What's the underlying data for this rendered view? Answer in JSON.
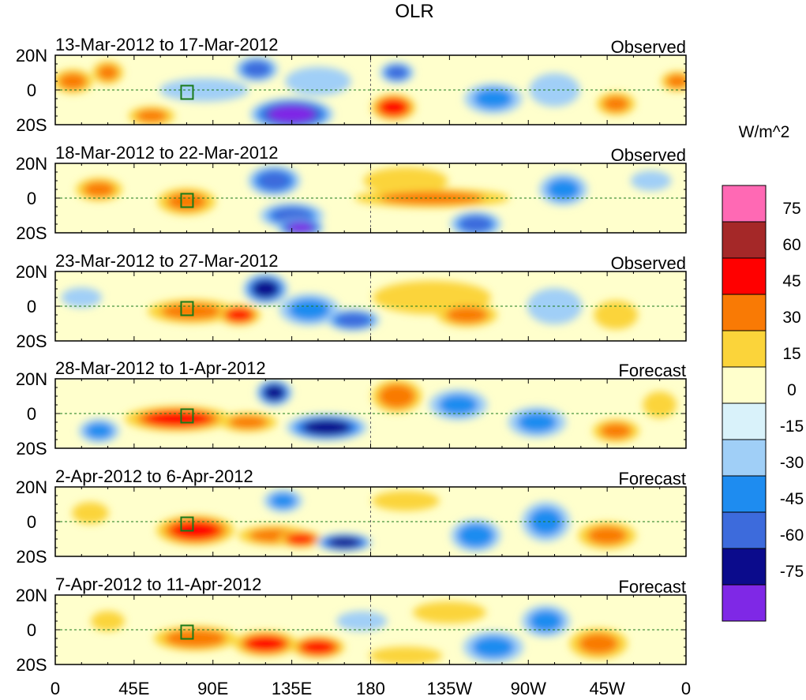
{
  "chart_data": {
    "type": "heatmap",
    "title": "OLR",
    "colorbar": {
      "units": "W/m^2",
      "colors": [
        "#7f28e6",
        "#0b0b8c",
        "#3d6bdc",
        "#1e8cf0",
        "#a0cff7",
        "#d9f2fa",
        "#ffffcc",
        "#fbd43a",
        "#f97a05",
        "#ff0000",
        "#a52828",
        "#ff69b4"
      ],
      "labels": [
        "-75",
        "-60",
        "-45",
        "-30",
        "-15",
        "0",
        "15",
        "30",
        "45",
        "60",
        "75"
      ]
    },
    "x_ticks": [
      "0",
      "45E",
      "90E",
      "135E",
      "180",
      "135W",
      "90W",
      "45W",
      "0"
    ],
    "y_ticks": [
      "20N",
      "0",
      "20S"
    ],
    "panels": [
      {
        "period": "13-Mar-2012 to 17-Mar-2012",
        "kind": "Observed",
        "blobs": [
          {
            "lon": 10,
            "lat": 5,
            "sx": 10,
            "sy": 6,
            "v": 35
          },
          {
            "lon": 30,
            "lat": 10,
            "sx": 8,
            "sy": 6,
            "v": 30
          },
          {
            "lon": 55,
            "lat": -15,
            "sx": 12,
            "sy": 5,
            "v": 30
          },
          {
            "lon": 85,
            "lat": 0,
            "sx": 30,
            "sy": 8,
            "v": -15
          },
          {
            "lon": 115,
            "lat": 12,
            "sx": 10,
            "sy": 6,
            "v": -45
          },
          {
            "lon": 135,
            "lat": -14,
            "sx": 18,
            "sy": 7,
            "v": -75
          },
          {
            "lon": 150,
            "lat": 5,
            "sx": 18,
            "sy": 8,
            "v": -25
          },
          {
            "lon": 193,
            "lat": -10,
            "sx": 10,
            "sy": 6,
            "v": 55
          },
          {
            "lon": 195,
            "lat": 10,
            "sx": 8,
            "sy": 5,
            "v": -45
          },
          {
            "lon": 250,
            "lat": -5,
            "sx": 15,
            "sy": 8,
            "v": -30
          },
          {
            "lon": 285,
            "lat": 0,
            "sx": 15,
            "sy": 10,
            "v": -20
          },
          {
            "lon": 320,
            "lat": -8,
            "sx": 10,
            "sy": 6,
            "v": 30
          },
          {
            "lon": 355,
            "lat": 5,
            "sx": 8,
            "sy": 5,
            "v": 35
          }
        ]
      },
      {
        "period": "18-Mar-2012 to 22-Mar-2012",
        "kind": "Observed",
        "blobs": [
          {
            "lon": 25,
            "lat": 5,
            "sx": 12,
            "sy": 6,
            "v": 30
          },
          {
            "lon": 75,
            "lat": -2,
            "sx": 15,
            "sy": 7,
            "v": 30
          },
          {
            "lon": 125,
            "lat": 10,
            "sx": 12,
            "sy": 7,
            "v": -50
          },
          {
            "lon": 135,
            "lat": -10,
            "sx": 15,
            "sy": 6,
            "v": -45
          },
          {
            "lon": 140,
            "lat": -17,
            "sx": 10,
            "sy": 4,
            "v": -75
          },
          {
            "lon": 200,
            "lat": 10,
            "sx": 25,
            "sy": 8,
            "v": 20
          },
          {
            "lon": 215,
            "lat": 0,
            "sx": 40,
            "sy": 5,
            "v": 30
          },
          {
            "lon": 240,
            "lat": -15,
            "sx": 12,
            "sy": 6,
            "v": -45
          },
          {
            "lon": 290,
            "lat": 5,
            "sx": 12,
            "sy": 8,
            "v": -35
          },
          {
            "lon": 340,
            "lat": 10,
            "sx": 12,
            "sy": 6,
            "v": -20
          }
        ]
      },
      {
        "period": "23-Mar-2012 to 27-Mar-2012",
        "kind": "Observed",
        "blobs": [
          {
            "lon": 15,
            "lat": 5,
            "sx": 12,
            "sy": 6,
            "v": -20
          },
          {
            "lon": 78,
            "lat": -3,
            "sx": 22,
            "sy": 6,
            "v": 35
          },
          {
            "lon": 105,
            "lat": -5,
            "sx": 10,
            "sy": 5,
            "v": 45
          },
          {
            "lon": 120,
            "lat": 10,
            "sx": 10,
            "sy": 7,
            "v": -60
          },
          {
            "lon": 145,
            "lat": -2,
            "sx": 15,
            "sy": 8,
            "v": -35
          },
          {
            "lon": 170,
            "lat": -8,
            "sx": 12,
            "sy": 5,
            "v": -55
          },
          {
            "lon": 215,
            "lat": 5,
            "sx": 35,
            "sy": 10,
            "v": 20
          },
          {
            "lon": 235,
            "lat": -5,
            "sx": 15,
            "sy": 6,
            "v": 35
          },
          {
            "lon": 285,
            "lat": 0,
            "sx": 15,
            "sy": 10,
            "v": -25
          },
          {
            "lon": 320,
            "lat": -5,
            "sx": 12,
            "sy": 8,
            "v": 25
          }
        ]
      },
      {
        "period": "28-Mar-2012 to 1-Apr-2012",
        "kind": "Forecast",
        "blobs": [
          {
            "lon": 25,
            "lat": -10,
            "sx": 10,
            "sy": 6,
            "v": -35
          },
          {
            "lon": 70,
            "lat": -3,
            "sx": 25,
            "sy": 6,
            "v": 45
          },
          {
            "lon": 110,
            "lat": -5,
            "sx": 15,
            "sy": 5,
            "v": 30
          },
          {
            "lon": 125,
            "lat": 12,
            "sx": 8,
            "sy": 6,
            "v": -60
          },
          {
            "lon": 155,
            "lat": -8,
            "sx": 18,
            "sy": 6,
            "v": -60
          },
          {
            "lon": 195,
            "lat": 10,
            "sx": 12,
            "sy": 8,
            "v": 40
          },
          {
            "lon": 230,
            "lat": 5,
            "sx": 15,
            "sy": 8,
            "v": -30
          },
          {
            "lon": 275,
            "lat": -5,
            "sx": 15,
            "sy": 8,
            "v": -30
          },
          {
            "lon": 320,
            "lat": -10,
            "sx": 12,
            "sy": 6,
            "v": 30
          },
          {
            "lon": 345,
            "lat": 5,
            "sx": 10,
            "sy": 8,
            "v": 20
          }
        ]
      },
      {
        "period": "2-Apr-2012 to 6-Apr-2012",
        "kind": "Forecast",
        "blobs": [
          {
            "lon": 20,
            "lat": 5,
            "sx": 10,
            "sy": 6,
            "v": 25
          },
          {
            "lon": 80,
            "lat": -5,
            "sx": 18,
            "sy": 7,
            "v": 50
          },
          {
            "lon": 125,
            "lat": -8,
            "sx": 18,
            "sy": 5,
            "v": 35
          },
          {
            "lon": 140,
            "lat": -10,
            "sx": 10,
            "sy": 4,
            "v": 50
          },
          {
            "lon": 165,
            "lat": -12,
            "sx": 12,
            "sy": 4,
            "v": -70
          },
          {
            "lon": 130,
            "lat": 12,
            "sx": 10,
            "sy": 6,
            "v": -30
          },
          {
            "lon": 200,
            "lat": 12,
            "sx": 20,
            "sy": 6,
            "v": 20
          },
          {
            "lon": 240,
            "lat": -8,
            "sx": 12,
            "sy": 8,
            "v": -40
          },
          {
            "lon": 280,
            "lat": 0,
            "sx": 12,
            "sy": 10,
            "v": -35
          },
          {
            "lon": 315,
            "lat": -8,
            "sx": 15,
            "sy": 7,
            "v": 30
          }
        ]
      },
      {
        "period": "7-Apr-2012 to 11-Apr-2012",
        "kind": "Forecast",
        "blobs": [
          {
            "lon": 30,
            "lat": 5,
            "sx": 10,
            "sy": 6,
            "v": 20
          },
          {
            "lon": 80,
            "lat": -5,
            "sx": 20,
            "sy": 6,
            "v": 40
          },
          {
            "lon": 120,
            "lat": -8,
            "sx": 15,
            "sy": 6,
            "v": 45
          },
          {
            "lon": 150,
            "lat": -10,
            "sx": 12,
            "sy": 5,
            "v": 55
          },
          {
            "lon": 175,
            "lat": 5,
            "sx": 15,
            "sy": 6,
            "v": -20
          },
          {
            "lon": 200,
            "lat": -15,
            "sx": 20,
            "sy": 5,
            "v": 25
          },
          {
            "lon": 225,
            "lat": 10,
            "sx": 20,
            "sy": 6,
            "v": 25
          },
          {
            "lon": 250,
            "lat": -10,
            "sx": 15,
            "sy": 8,
            "v": -35
          },
          {
            "lon": 280,
            "lat": 5,
            "sx": 12,
            "sy": 8,
            "v": -35
          },
          {
            "lon": 310,
            "lat": -8,
            "sx": 15,
            "sy": 8,
            "v": 30
          }
        ]
      }
    ]
  }
}
